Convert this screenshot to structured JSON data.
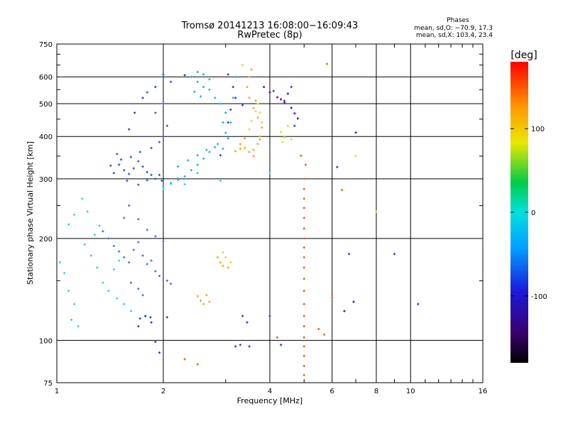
{
  "header": {
    "title_line1": "Tromsø 20141213 16:08:00−16:09:43",
    "title_line2": "RwPretec (8p)"
  },
  "stats": {
    "heading": "Phases",
    "line_o": "mean, sd,O: −70.9, 17.3",
    "line_x": "mean, sd,X: 103.4, 23.4"
  },
  "chart_data": {
    "type": "scatter",
    "xlabel": "Frequency [MHz]",
    "ylabel": "Stationary phase Virtual Height [km]",
    "xscale": "log",
    "yscale": "log",
    "xlim": [
      1,
      16
    ],
    "ylim": [
      75,
      750
    ],
    "xticks": [
      1,
      2,
      4,
      6,
      8,
      10,
      16
    ],
    "yticks": [
      75,
      100,
      200,
      300,
      400,
      500,
      600,
      750
    ],
    "grid": true,
    "colorbar": {
      "label": "[deg]",
      "range": [
        -180,
        180
      ],
      "ticks": [
        100,
        0,
        -100
      ],
      "colors": [
        "#000000",
        "#3a0070",
        "#1a1adc",
        "#00a0ff",
        "#00e0e0",
        "#00cc44",
        "#e8e800",
        "#ff9900",
        "#ff0000"
      ]
    },
    "series": [
      {
        "color": "#1e3cd2",
        "points": [
          [
            1.7,
            110
          ],
          [
            1.72,
            116
          ],
          [
            1.78,
            118
          ],
          [
            1.84,
            117
          ],
          [
            2.05,
            117
          ],
          [
            1.6,
            420
          ],
          [
            1.66,
            470
          ],
          [
            1.75,
            520
          ],
          [
            1.9,
            560
          ],
          [
            2.0,
            600
          ],
          [
            2.3,
            607
          ],
          [
            3.05,
            610
          ],
          [
            3.15,
            560
          ],
          [
            3.1,
            480
          ],
          [
            3.05,
            440
          ],
          [
            3.35,
            495
          ],
          [
            3.2,
            520
          ],
          [
            2.9,
            352
          ],
          [
            3.35,
            118
          ],
          [
            3.45,
            113
          ],
          [
            3.2,
            96
          ],
          [
            3.3,
            97
          ],
          [
            3.5,
            96
          ],
          [
            4.0,
            118
          ],
          [
            4.3,
            97
          ],
          [
            4.6,
            560
          ],
          [
            4.7,
            430
          ],
          [
            4.4,
            510
          ],
          [
            4.1,
            545
          ],
          [
            6.2,
            325
          ],
          [
            6.7,
            180
          ],
          [
            9.0,
            180
          ],
          [
            10.5,
            128
          ],
          [
            1.78,
            118
          ],
          [
            1.85,
            113
          ],
          [
            1.9,
            99
          ],
          [
            1.95,
            92
          ]
        ]
      },
      {
        "color": "#2850dc",
        "points": [
          [
            1.5,
            330
          ],
          [
            1.55,
            318
          ],
          [
            1.6,
            310
          ],
          [
            1.65,
            322
          ],
          [
            1.7,
            338
          ],
          [
            1.75,
            326
          ],
          [
            1.8,
            314
          ],
          [
            1.85,
            308
          ],
          [
            1.9,
            300
          ],
          [
            1.98,
            296
          ],
          [
            1.45,
            312
          ],
          [
            1.42,
            328
          ],
          [
            1.52,
            342
          ],
          [
            1.62,
            348
          ],
          [
            1.58,
            296
          ],
          [
            1.7,
            288
          ],
          [
            1.8,
            297
          ],
          [
            1.95,
            308
          ],
          [
            1.48,
            355
          ],
          [
            1.72,
            360
          ],
          [
            1.85,
            370
          ],
          [
            1.95,
            385
          ],
          [
            2.0,
            400
          ],
          [
            2.05,
            430
          ],
          [
            1.9,
            470
          ],
          [
            2.0,
            500
          ],
          [
            1.8,
            540
          ],
          [
            2.1,
            580
          ],
          [
            2.0,
            610
          ]
        ]
      },
      {
        "color": "#3c6ee6",
        "points": [
          [
            1.35,
            210
          ],
          [
            1.4,
            200
          ],
          [
            1.45,
            190
          ],
          [
            1.5,
            183
          ],
          [
            1.55,
            176
          ],
          [
            1.6,
            170
          ],
          [
            1.65,
            185
          ],
          [
            1.7,
            195
          ],
          [
            1.75,
            178
          ],
          [
            1.8,
            168
          ],
          [
            1.85,
            172
          ],
          [
            1.9,
            160
          ],
          [
            1.95,
            155
          ],
          [
            2.05,
            150
          ],
          [
            2.1,
            147
          ],
          [
            1.62,
            148
          ],
          [
            1.7,
            142
          ],
          [
            1.75,
            136
          ],
          [
            1.55,
            230
          ],
          [
            1.6,
            250
          ],
          [
            1.7,
            228
          ],
          [
            1.8,
            212
          ],
          [
            1.9,
            203
          ],
          [
            2.0,
            196
          ]
        ]
      },
      {
        "color": "#14aaf0",
        "points": [
          [
            2.4,
            600
          ],
          [
            2.5,
            620
          ],
          [
            2.6,
            610
          ],
          [
            2.7,
            590
          ],
          [
            2.5,
            580
          ],
          [
            2.6,
            560
          ],
          [
            2.7,
            550
          ],
          [
            2.45,
            542
          ],
          [
            2.55,
            525
          ],
          [
            2.8,
            520
          ],
          [
            2.9,
            500
          ],
          [
            3.0,
            470
          ],
          [
            2.95,
            440
          ],
          [
            3.0,
            410
          ],
          [
            3.05,
            395
          ],
          [
            2.85,
            380
          ],
          [
            2.7,
            360
          ],
          [
            2.6,
            344
          ],
          [
            2.5,
            330
          ],
          [
            2.4,
            318
          ],
          [
            2.3,
            305
          ],
          [
            2.2,
            298
          ],
          [
            2.1,
            290
          ],
          [
            2.0,
            284
          ],
          [
            2.2,
            326
          ],
          [
            2.35,
            340
          ],
          [
            2.5,
            352
          ],
          [
            2.65,
            365
          ],
          [
            2.8,
            372
          ],
          [
            2.95,
            368
          ],
          [
            3.1,
            440
          ],
          [
            3.15,
            520
          ],
          [
            3.2,
            600
          ]
        ]
      },
      {
        "color": "#32c8e6",
        "points": [
          [
            1.02,
            170
          ],
          [
            1.05,
            158
          ],
          [
            1.08,
            140
          ],
          [
            1.12,
            128
          ],
          [
            1.1,
            115
          ],
          [
            1.15,
            110
          ],
          [
            1.2,
            192
          ],
          [
            1.25,
            178
          ],
          [
            1.3,
            164
          ],
          [
            1.35,
            148
          ],
          [
            1.4,
            140
          ],
          [
            1.48,
            133
          ],
          [
            1.55,
            128
          ],
          [
            1.62,
            122
          ],
          [
            1.45,
            162
          ],
          [
            1.5,
            172
          ],
          [
            1.28,
            205
          ],
          [
            1.32,
            218
          ],
          [
            1.22,
            240
          ],
          [
            1.18,
            262
          ],
          [
            1.08,
            220
          ],
          [
            1.12,
            235
          ],
          [
            2.0,
            280
          ],
          [
            2.1,
            292
          ],
          [
            2.2,
            301
          ],
          [
            2.3,
            289
          ],
          [
            2.5,
            312
          ],
          [
            2.9,
            296
          ],
          [
            4.0,
            312
          ]
        ]
      },
      {
        "color": "#ff9b14",
        "points": [
          [
            3.3,
            380
          ],
          [
            3.4,
            370
          ],
          [
            3.5,
            360
          ],
          [
            3.6,
            365
          ],
          [
            3.7,
            380
          ],
          [
            3.75,
            400
          ],
          [
            3.8,
            425
          ],
          [
            3.7,
            455
          ],
          [
            3.6,
            485
          ],
          [
            3.5,
            520
          ],
          [
            3.45,
            560
          ],
          [
            3.5,
            600
          ],
          [
            3.55,
            630
          ],
          [
            3.4,
            395
          ],
          [
            3.3,
            368
          ],
          [
            3.2,
            362
          ],
          [
            3.6,
            350
          ],
          [
            3.75,
            392
          ],
          [
            3.8,
            440
          ],
          [
            3.65,
            510
          ],
          [
            2.5,
            135
          ],
          [
            2.55,
            131
          ],
          [
            2.6,
            128
          ],
          [
            2.65,
            136
          ],
          [
            2.7,
            130
          ],
          [
            2.85,
            176
          ],
          [
            2.9,
            170
          ],
          [
            2.95,
            166
          ],
          [
            3.05,
            164
          ]
        ]
      },
      {
        "color": "#e65a1e",
        "points": [
          [
            5.0,
            300
          ],
          [
            5.0,
            280
          ],
          [
            5.0,
            262
          ],
          [
            5.0,
            246
          ],
          [
            5.0,
            230
          ],
          [
            5.0,
            214
          ],
          [
            5.0,
            200
          ],
          [
            5.0,
            188
          ],
          [
            5.0,
            176
          ],
          [
            5.0,
            164
          ],
          [
            5.0,
            152
          ],
          [
            5.0,
            140
          ],
          [
            5.0,
            128
          ],
          [
            5.0,
            118
          ],
          [
            5.0,
            110
          ],
          [
            5.0,
            102
          ],
          [
            5.0,
            96
          ],
          [
            5.0,
            90
          ],
          [
            5.0,
            84
          ],
          [
            5.0,
            79
          ],
          [
            4.9,
            351
          ],
          [
            5.05,
            330
          ],
          [
            5.5,
            108
          ],
          [
            5.7,
            104
          ],
          [
            6.0,
            134
          ],
          [
            6.4,
            278
          ],
          [
            2.3,
            88
          ],
          [
            2.5,
            85
          ],
          [
            4.2,
            102
          ],
          [
            5.8,
            655
          ]
        ]
      },
      {
        "color": "#c8e628",
        "points": [
          [
            3.5,
            420
          ],
          [
            3.55,
            445
          ],
          [
            3.65,
            475
          ],
          [
            3.7,
            500
          ],
          [
            3.75,
            470
          ],
          [
            3.8,
            440
          ],
          [
            4.3,
            412
          ],
          [
            4.4,
            398
          ],
          [
            4.5,
            430
          ],
          [
            4.35,
            385
          ],
          [
            4.6,
            392
          ],
          [
            2.95,
            182
          ],
          [
            3.0,
            176
          ],
          [
            3.1,
            170
          ],
          [
            7.0,
            350
          ],
          [
            8.0,
            240
          ],
          [
            3.35,
            650
          ]
        ]
      },
      {
        "color": "#5a0096",
        "points": [
          [
            3.85,
            560
          ],
          [
            4.0,
            540
          ],
          [
            4.2,
            522
          ],
          [
            4.4,
            504
          ],
          [
            4.6,
            486
          ],
          [
            4.7,
            468
          ],
          [
            4.8,
            452
          ],
          [
            4.5,
            535
          ],
          [
            4.3,
            515
          ],
          [
            7.0,
            411
          ],
          [
            6.9,
            130
          ],
          [
            6.5,
            122
          ]
        ]
      }
    ]
  }
}
